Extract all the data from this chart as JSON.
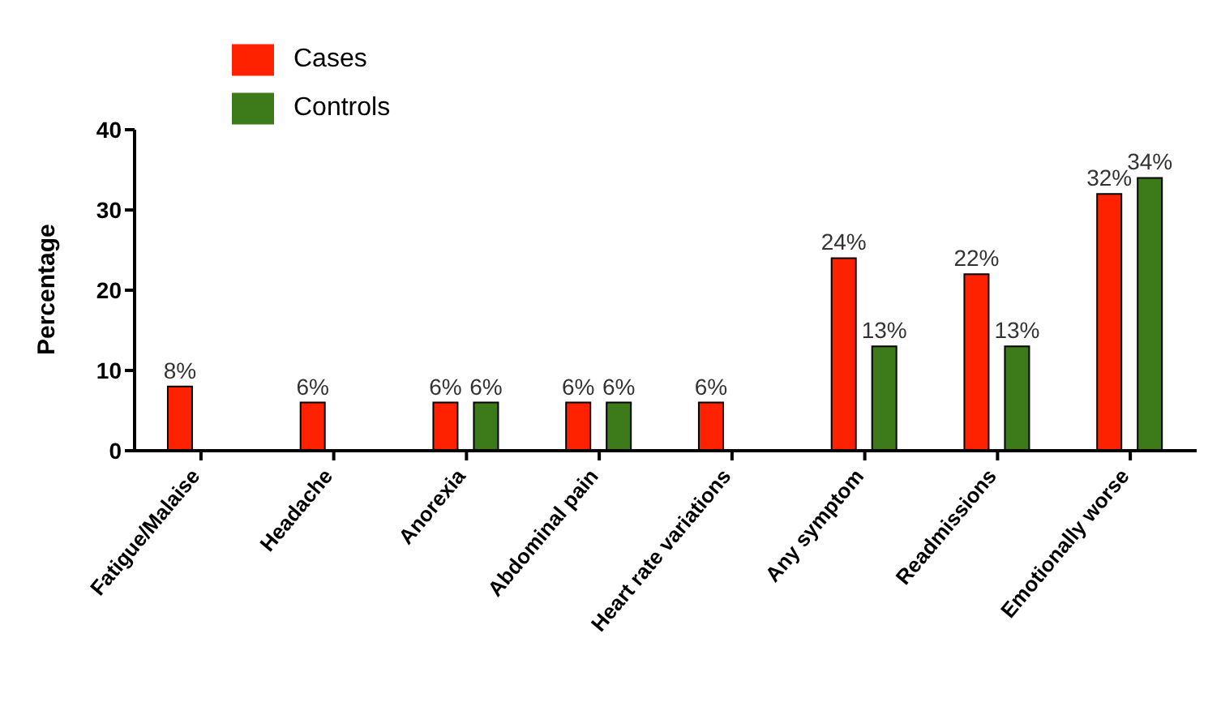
{
  "chart_data": {
    "type": "bar",
    "ylabel": "Percentage",
    "categories": [
      "Fatigue/Malaise",
      "Headache",
      "Anorexia",
      "Abdominal pain",
      "Heart rate variations",
      "Any symptom",
      "Readmissions",
      "Emotionally worse"
    ],
    "series": [
      {
        "name": "Cases",
        "color": "#ff2200",
        "values": [
          8,
          6,
          6,
          6,
          6,
          24,
          22,
          32
        ],
        "value_labels": [
          "8%",
          "6%",
          "6%",
          "6%",
          "6%",
          "24%",
          "22%",
          "32%"
        ]
      },
      {
        "name": "Controls",
        "color": "#3d7a1a",
        "values": [
          null,
          null,
          6,
          6,
          null,
          13,
          13,
          34
        ],
        "value_labels": [
          null,
          null,
          "6%",
          "6%",
          null,
          "13%",
          "13%",
          "34%"
        ]
      }
    ],
    "ylim": [
      0,
      40
    ],
    "yticks": [
      0,
      10,
      20,
      30,
      40
    ],
    "grid": false,
    "legend": "top left"
  }
}
